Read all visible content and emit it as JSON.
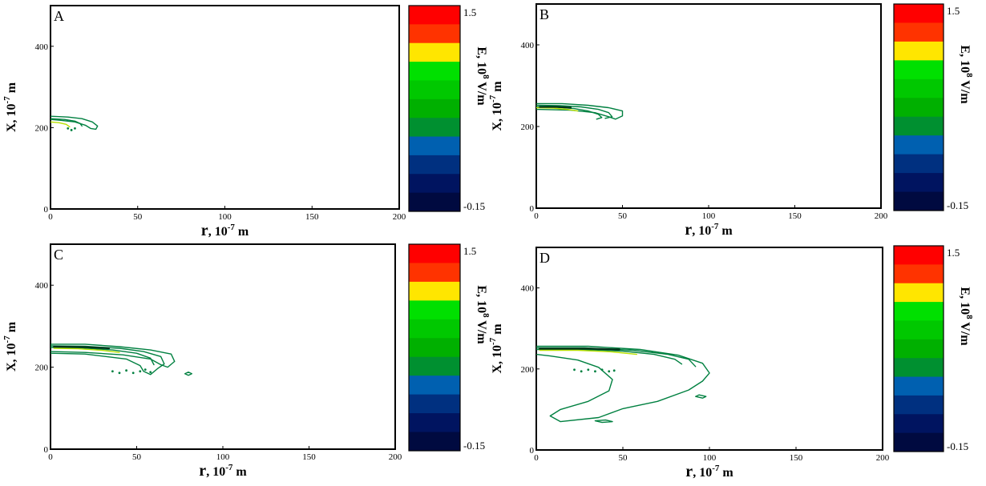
{
  "colors": {
    "colorbar": [
      "#ff0000",
      "#ff3300",
      "#ffe600",
      "#00e000",
      "#00c800",
      "#00b000",
      "#009030",
      "#0060b0",
      "#003080",
      "#001460",
      "#000a40"
    ],
    "contour_primary": "#008040",
    "contour_accent": "#b8e000",
    "contour_dark": "#00331a"
  },
  "chart_data": [
    {
      "type": "contour",
      "panel_label": "A",
      "xlabel_main": "r",
      "xlabel_unit": ", 10",
      "xlabel_exp": "-7",
      "xlabel_tail": " m",
      "ylabel_main": "X",
      "ylabel_unit": ", 10",
      "ylabel_exp": "-7",
      "ylabel_tail": " m",
      "xlim": [
        0,
        200
      ],
      "ylim": [
        0,
        500
      ],
      "x_ticks": [
        "0",
        "50",
        "100",
        "150",
        "200"
      ],
      "y_ticks": [
        "0",
        "200",
        "400"
      ],
      "colorbar": {
        "label_main": "E, 10",
        "label_exp": "8",
        "label_tail": " V/m",
        "max_label": "1.5",
        "min_label": "-0.15",
        "max": 1.5,
        "min": -0.15,
        "levels": 11
      },
      "contours": [
        {
          "level": "mid",
          "points": [
            [
              0,
              228
            ],
            [
              10,
              226
            ],
            [
              18,
              222
            ],
            [
              24,
              214
            ],
            [
              27,
              204
            ],
            [
              26,
              196
            ],
            [
              23,
              198
            ],
            [
              20,
              206
            ],
            [
              14,
              214
            ],
            [
              6,
              218
            ],
            [
              0,
              220
            ]
          ]
        },
        {
          "level": "mid",
          "points": [
            [
              0,
              222
            ],
            [
              8,
              220
            ],
            [
              14,
              216
            ],
            [
              17,
              210
            ],
            [
              18,
              204
            ]
          ]
        },
        {
          "level": "high",
          "points": [
            [
              0,
              214
            ],
            [
              5,
              212
            ],
            [
              9,
              208
            ],
            [
              11,
              202
            ]
          ]
        }
      ],
      "spots": [
        [
          10,
          198
        ],
        [
          12,
          194
        ],
        [
          14,
          198
        ]
      ]
    },
    {
      "type": "contour",
      "panel_label": "B",
      "xlabel_main": "r",
      "xlabel_unit": ", 10",
      "xlabel_exp": "-7",
      "xlabel_tail": " m",
      "ylabel_main": "X",
      "ylabel_unit": ", 10",
      "ylabel_exp": "-7",
      "ylabel_tail": " m",
      "xlim": [
        0,
        200
      ],
      "ylim": [
        0,
        500
      ],
      "x_ticks": [
        "0",
        "50",
        "100",
        "150",
        "200"
      ],
      "y_ticks": [
        "0",
        "200",
        "400"
      ],
      "colorbar": {
        "label_main": "E, 10",
        "label_exp": "8",
        "label_tail": " V/m",
        "max_label": "1.5",
        "min_label": "-0.15",
        "max": 1.5,
        "min": -0.15,
        "levels": 11
      },
      "contours": [
        {
          "level": "mid",
          "points": [
            [
              0,
              256
            ],
            [
              15,
              256
            ],
            [
              30,
              252
            ],
            [
              42,
              246
            ],
            [
              50,
              238
            ],
            [
              50,
              226
            ],
            [
              46,
              218
            ],
            [
              42,
              224
            ],
            [
              34,
              234
            ],
            [
              20,
              240
            ],
            [
              0,
              242
            ]
          ]
        },
        {
          "level": "mid",
          "points": [
            [
              0,
              252
            ],
            [
              14,
              251
            ],
            [
              26,
              248
            ],
            [
              36,
              242
            ],
            [
              42,
              234
            ],
            [
              44,
              224
            ],
            [
              40,
              220
            ]
          ]
        },
        {
          "level": "mid",
          "points": [
            [
              0,
              248
            ],
            [
              12,
              247
            ],
            [
              22,
              244
            ],
            [
              30,
              238
            ],
            [
              36,
              230
            ],
            [
              38,
              222
            ],
            [
              35,
              218
            ]
          ]
        },
        {
          "level": "high",
          "points": [
            [
              0,
              246
            ],
            [
              10,
              245
            ],
            [
              18,
              242
            ],
            [
              24,
              238
            ]
          ]
        },
        {
          "level": "dark",
          "points": [
            [
              2,
              248
            ],
            [
              12,
              248
            ],
            [
              20,
              246
            ]
          ]
        }
      ],
      "spots": []
    },
    {
      "type": "contour",
      "panel_label": "C",
      "xlabel_main": "r",
      "xlabel_unit": ", 10",
      "xlabel_exp": "-7",
      "xlabel_tail": " m",
      "ylabel_main": "X",
      "ylabel_unit": ", 10",
      "ylabel_exp": "-7",
      "ylabel_tail": " m",
      "xlim": [
        0,
        200
      ],
      "ylim": [
        0,
        500
      ],
      "x_ticks": [
        "0",
        "50",
        "100",
        "150",
        "200"
      ],
      "y_ticks": [
        "0",
        "200",
        "400"
      ],
      "colorbar": {
        "label_main": "E, 10",
        "label_exp": "8",
        "label_tail": " V/m",
        "max_label": "1.5",
        "min_label": "-0.15",
        "max": 1.5,
        "min": -0.15,
        "levels": 11
      },
      "contours": [
        {
          "level": "mid",
          "points": [
            [
              0,
              256
            ],
            [
              20,
              256
            ],
            [
              40,
              250
            ],
            [
              58,
              242
            ],
            [
              70,
              232
            ],
            [
              72,
              214
            ],
            [
              68,
              200
            ],
            [
              64,
              206
            ],
            [
              58,
              220
            ],
            [
              42,
              230
            ],
            [
              20,
              236
            ],
            [
              0,
              238
            ]
          ]
        },
        {
          "level": "mid",
          "points": [
            [
              0,
              252
            ],
            [
              20,
              251
            ],
            [
              40,
              246
            ],
            [
              54,
              238
            ],
            [
              64,
              226
            ],
            [
              66,
              208
            ],
            [
              62,
              196
            ],
            [
              58,
              182
            ],
            [
              54,
              190
            ],
            [
              52,
              204
            ],
            [
              44,
              220
            ],
            [
              20,
              232
            ],
            [
              0,
              234
            ]
          ]
        },
        {
          "level": "mid",
          "points": [
            [
              0,
              248
            ],
            [
              18,
              247
            ],
            [
              36,
              242
            ],
            [
              50,
              234
            ],
            [
              58,
              222
            ],
            [
              60,
              206
            ]
          ]
        },
        {
          "level": "high",
          "points": [
            [
              2,
              246
            ],
            [
              16,
              245
            ],
            [
              30,
              241
            ],
            [
              40,
              236
            ]
          ]
        },
        {
          "level": "dark",
          "points": [
            [
              2,
              250
            ],
            [
              20,
              249
            ],
            [
              34,
              246
            ]
          ]
        },
        {
          "level": "mid",
          "points": [
            [
              78,
              184
            ],
            [
              80,
              180
            ],
            [
              82,
              184
            ],
            [
              80,
              188
            ],
            [
              78,
              184
            ]
          ]
        }
      ],
      "spots": [
        [
          36,
          190
        ],
        [
          40,
          186
        ],
        [
          44,
          192
        ],
        [
          48,
          186
        ],
        [
          52,
          190
        ],
        [
          55,
          194
        ],
        [
          58,
          188
        ]
      ]
    },
    {
      "type": "contour",
      "panel_label": "D",
      "xlabel_main": "r",
      "xlabel_unit": ", 10",
      "xlabel_exp": "-7",
      "xlabel_tail": " m",
      "ylabel_main": "X",
      "ylabel_unit": ", 10",
      "ylabel_exp": "-7",
      "ylabel_tail": " m",
      "xlim": [
        0,
        200
      ],
      "ylim": [
        0,
        500
      ],
      "x_ticks": [
        "0",
        "50",
        "100",
        "150",
        "200"
      ],
      "y_ticks": [
        "0",
        "200",
        "400"
      ],
      "colorbar": {
        "label_main": "E, 10",
        "label_exp": "8",
        "label_tail": " V/m",
        "max_label": "1.5",
        "min_label": "-0.15",
        "max": 1.5,
        "min": -0.15,
        "levels": 11
      },
      "contours": [
        {
          "level": "mid",
          "points": [
            [
              0,
              256
            ],
            [
              30,
              256
            ],
            [
              60,
              248
            ],
            [
              82,
              234
            ],
            [
              96,
              214
            ],
            [
              100,
              190
            ],
            [
              96,
              170
            ],
            [
              88,
              148
            ],
            [
              70,
              120
            ],
            [
              50,
              102
            ],
            [
              36,
              80
            ],
            [
              14,
              70
            ],
            [
              8,
              84
            ],
            [
              14,
              100
            ],
            [
              30,
              120
            ],
            [
              42,
              146
            ],
            [
              44,
              174
            ],
            [
              36,
              204
            ],
            [
              24,
              222
            ],
            [
              8,
              232
            ],
            [
              0,
              236
            ]
          ]
        },
        {
          "level": "mid",
          "points": [
            [
              0,
              252
            ],
            [
              28,
              252
            ],
            [
              56,
              246
            ],
            [
              76,
              236
            ],
            [
              88,
              224
            ],
            [
              92,
              206
            ]
          ]
        },
        {
          "level": "mid",
          "points": [
            [
              0,
              248
            ],
            [
              26,
              248
            ],
            [
              50,
              244
            ],
            [
              68,
              236
            ],
            [
              80,
              224
            ],
            [
              84,
              212
            ]
          ]
        },
        {
          "level": "high",
          "points": [
            [
              2,
              246
            ],
            [
              24,
              246
            ],
            [
              44,
              242
            ],
            [
              58,
              236
            ]
          ]
        },
        {
          "level": "dark",
          "points": [
            [
              2,
              250
            ],
            [
              30,
              250
            ],
            [
              48,
              248
            ]
          ]
        },
        {
          "level": "mid",
          "points": [
            [
              94,
              136
            ],
            [
              98,
              132
            ],
            [
              96,
              128
            ],
            [
              92,
              132
            ],
            [
              94,
              136
            ]
          ]
        },
        {
          "level": "mid",
          "points": [
            [
              34,
              72
            ],
            [
              38,
              68
            ],
            [
              44,
              70
            ],
            [
              40,
              74
            ],
            [
              34,
              72
            ]
          ]
        }
      ],
      "spots": [
        [
          22,
          198
        ],
        [
          26,
          194
        ],
        [
          30,
          198
        ],
        [
          34,
          194
        ],
        [
          38,
          198
        ],
        [
          42,
          194
        ],
        [
          45,
          196
        ]
      ]
    }
  ]
}
